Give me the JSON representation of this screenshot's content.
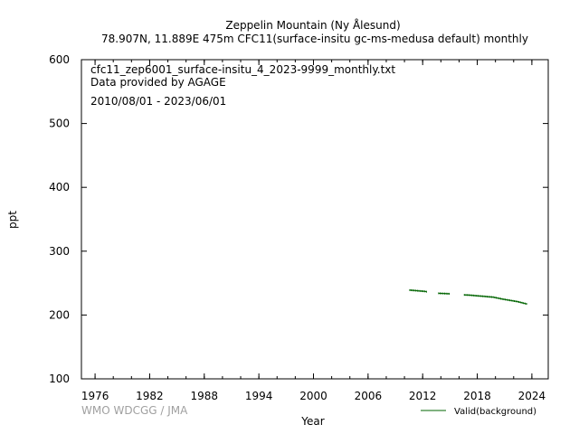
{
  "header": {
    "title": "Zeppelin Mountain (Ny Ålesund)",
    "subtitle": "78.907N, 11.889E 475m    CFC11(surface-insitu gc-ms-medusa default) monthly"
  },
  "info": {
    "filename": "cfc11_zep6001_surface-insitu_4_2023-9999_monthly.txt",
    "provider": "Data provided by AGAGE",
    "period": "2010/08/01 - 2023/06/01"
  },
  "footer": {
    "credit": "WMO WDCGG / JMA"
  },
  "colors": {
    "series": "#006400",
    "axis": "#000000",
    "credit": "#a0a0a0"
  },
  "chart_data": {
    "type": "line",
    "title": "Zeppelin Mountain (Ny Ålesund)",
    "xlabel": "Year",
    "ylabel": "ppt",
    "xlim": [
      1974.5,
      2025.8
    ],
    "ylim": [
      100,
      600
    ],
    "x_ticks": [
      1976,
      1982,
      1988,
      1994,
      2000,
      2006,
      2012,
      2018,
      2024
    ],
    "y_ticks": [
      100,
      200,
      300,
      400,
      500,
      600
    ],
    "legend_position": "bottom-right",
    "grid": false,
    "series": [
      {
        "name": "Valid(background)",
        "segments": [
          [
            [
              2010.58,
              239.0
            ],
            [
              2010.75,
              238.8
            ],
            [
              2010.92,
              238.6
            ],
            [
              2011.08,
              238.4
            ],
            [
              2011.25,
              238.2
            ],
            [
              2011.42,
              238.0
            ],
            [
              2011.58,
              237.8
            ],
            [
              2011.75,
              237.6
            ],
            [
              2011.92,
              237.4
            ],
            [
              2012.08,
              237.2
            ],
            [
              2012.25,
              237.0
            ],
            [
              2012.42,
              236.5
            ]
          ],
          [
            [
              2013.75,
              234.0
            ],
            [
              2013.92,
              233.9
            ],
            [
              2014.08,
              233.8
            ],
            [
              2014.25,
              233.7
            ],
            [
              2014.42,
              233.6
            ],
            [
              2014.58,
              233.5
            ],
            [
              2014.75,
              233.4
            ],
            [
              2014.92,
              233.3
            ]
          ],
          [
            [
              2016.58,
              231.5
            ],
            [
              2016.75,
              231.4
            ],
            [
              2016.92,
              231.3
            ],
            [
              2017.08,
              231.2
            ],
            [
              2017.25,
              231.0
            ],
            [
              2017.42,
              230.8
            ],
            [
              2017.58,
              230.6
            ],
            [
              2017.75,
              230.4
            ],
            [
              2017.92,
              230.2
            ],
            [
              2018.08,
              230.0
            ],
            [
              2018.25,
              229.8
            ],
            [
              2018.42,
              229.6
            ],
            [
              2018.58,
              229.4
            ],
            [
              2018.75,
              229.2
            ],
            [
              2018.92,
              229.0
            ],
            [
              2019.08,
              228.8
            ],
            [
              2019.25,
              228.6
            ],
            [
              2019.42,
              228.4
            ],
            [
              2019.58,
              228.2
            ],
            [
              2019.75,
              228.0
            ],
            [
              2019.92,
              227.5
            ],
            [
              2020.08,
              227.0
            ],
            [
              2020.25,
              226.5
            ],
            [
              2020.42,
              226.0
            ],
            [
              2020.58,
              225.5
            ],
            [
              2020.75,
              225.0
            ],
            [
              2020.92,
              224.6
            ],
            [
              2021.08,
              224.2
            ],
            [
              2021.25,
              223.8
            ],
            [
              2021.42,
              223.4
            ],
            [
              2021.58,
              223.0
            ],
            [
              2021.75,
              222.6
            ],
            [
              2021.92,
              222.2
            ],
            [
              2022.08,
              221.8
            ],
            [
              2022.25,
              221.4
            ],
            [
              2022.42,
              221.0
            ],
            [
              2022.58,
              220.4
            ],
            [
              2022.75,
              219.8
            ],
            [
              2022.92,
              219.2
            ],
            [
              2023.08,
              218.6
            ],
            [
              2023.25,
              218.0
            ],
            [
              2023.42,
              217.4
            ]
          ]
        ]
      }
    ]
  }
}
